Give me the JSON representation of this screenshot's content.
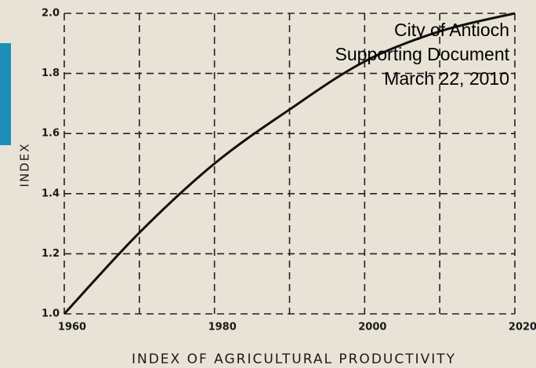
{
  "chart_data": {
    "type": "line",
    "y_label": "INDEX",
    "x_label": "INDEX OF AGRICULTURAL PRODUCTIVITY",
    "annotation": [
      "City of Antioch",
      "Supporting Document",
      "March 22, 2010"
    ],
    "x": [
      1960,
      1970,
      1980,
      1990,
      2000,
      2010,
      2020
    ],
    "series": [
      {
        "color": "#111111",
        "values": [
          1.0,
          1.27,
          1.5,
          1.68,
          1.84,
          1.94,
          2.0
        ]
      }
    ],
    "xlim": [
      1960,
      2020
    ],
    "xticks": [
      1960,
      1980,
      2000,
      2020
    ],
    "xgrid_minor": [
      1970,
      1990,
      2010
    ],
    "ylim": [
      1.0,
      2.0
    ],
    "yticks": [
      {
        "value": 1.0,
        "label": "1.0"
      },
      1.2,
      1.4,
      1.6,
      1.8,
      {
        "value": 2.0,
        "label": "2.0"
      }
    ],
    "grid": true
  }
}
